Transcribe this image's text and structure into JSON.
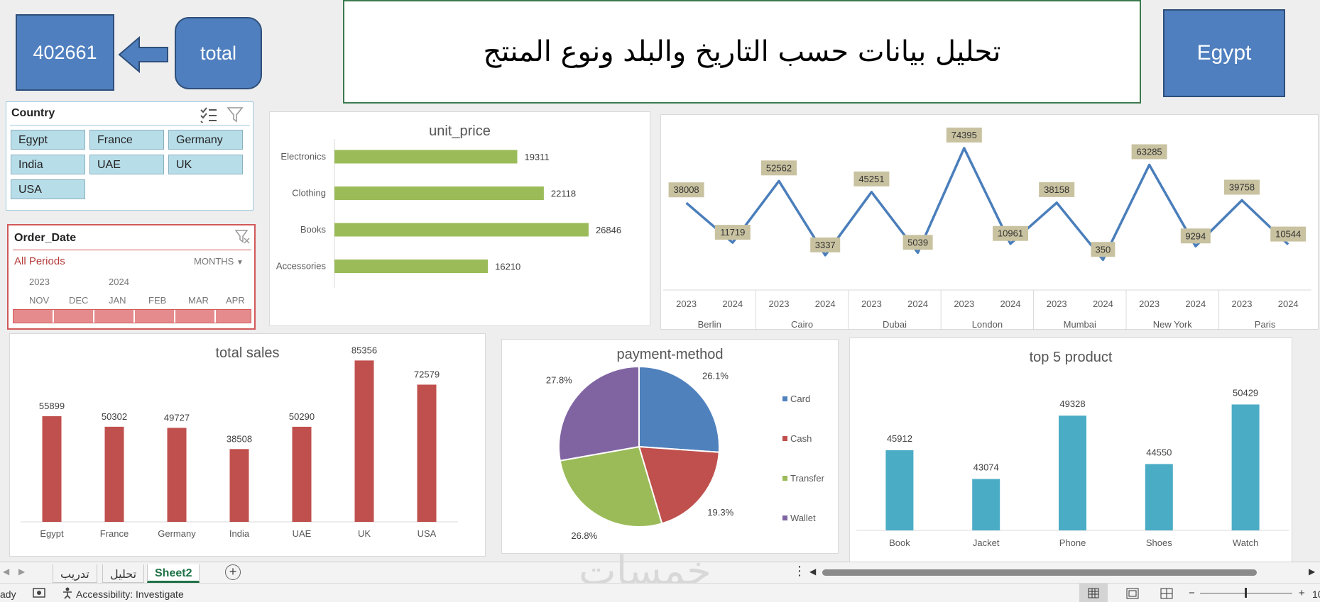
{
  "kpi": {
    "total_value": "402661",
    "total_label": "total",
    "country_label": "Egypt",
    "colors": {
      "fill": "#4f7fbf",
      "border": "#2f4f7a"
    }
  },
  "header": {
    "title": "تحليل بيانات حسب التاريخ والبلد ونوع المنتج"
  },
  "country_slicer": {
    "title": "Country",
    "items": [
      "Egypt",
      "France",
      "Germany",
      "India",
      "UAE",
      "UK",
      "USA"
    ],
    "icons": [
      "multi-select-icon",
      "clear-filter-icon"
    ]
  },
  "date_slicer": {
    "title": "Order_Date",
    "period_label": "All Periods",
    "level_label": "MONTHS",
    "years": [
      "2023",
      "2024"
    ],
    "months": [
      "NOV",
      "DEC",
      "JAN",
      "FEB",
      "MAR",
      "APR"
    ],
    "icons": [
      "clear-filter-icon",
      "dropdown-arrow-icon"
    ]
  },
  "chart_data": [
    {
      "type": "bar",
      "orientation": "horizontal",
      "title": "unit_price",
      "categories": [
        "Electronics",
        "Clothing",
        "Books",
        "Accessories"
      ],
      "values": [
        19311,
        22118,
        26846,
        16210
      ],
      "color": "#9bbb59",
      "xlim": [
        0,
        30000
      ]
    },
    {
      "type": "line",
      "title": "",
      "groups": [
        "Berlin",
        "Cairo",
        "Dubai",
        "London",
        "Mumbai",
        "New York",
        "Paris"
      ],
      "x": [
        "2023",
        "2024",
        "2023",
        "2024",
        "2023",
        "2024",
        "2023",
        "2024",
        "2023",
        "2024",
        "2023",
        "2024",
        "2023",
        "2024"
      ],
      "values": [
        38008,
        11719,
        52562,
        3337,
        45251,
        5039,
        74395,
        10961,
        38158,
        350,
        63285,
        9294,
        39758,
        10544
      ],
      "color": "#4a7ebb",
      "label_color": "#c9c2a0",
      "ylim": [
        0,
        80000
      ]
    },
    {
      "type": "bar",
      "title": "total sales",
      "categories": [
        "Egypt",
        "France",
        "Germany",
        "India",
        "UAE",
        "UK",
        "USA"
      ],
      "values": [
        55899,
        50302,
        49727,
        38508,
        50290,
        85356,
        72579
      ],
      "color": "#c0504d",
      "ylim": [
        0,
        90000
      ]
    },
    {
      "type": "pie",
      "title": "payment-method",
      "labels": [
        "Card",
        "Cash",
        "Transfer",
        "Wallet"
      ],
      "values": [
        26.1,
        19.3,
        26.8,
        27.8
      ],
      "value_labels": [
        "26.1%",
        "19.3%",
        "26.8%",
        "27.8%"
      ],
      "colors": [
        "#4f81bd",
        "#c0504d",
        "#9bbb59",
        "#8064a2"
      ],
      "legend": "right"
    },
    {
      "type": "bar",
      "title": "top 5 product",
      "categories": [
        "Book",
        "Jacket",
        "Phone",
        "Shoes",
        "Watch"
      ],
      "values": [
        45912,
        43074,
        49328,
        44550,
        50429
      ],
      "color": "#4bacc6",
      "ylim": [
        38000,
        52000
      ]
    }
  ],
  "sheet_tabs": {
    "tabs": [
      "تدريب",
      "تحليل",
      "Sheet2"
    ],
    "active": "Sheet2",
    "icons": [
      "add-sheet-icon",
      "options-dots-icon",
      "scroll-left-icon",
      "scroll-right-icon"
    ]
  },
  "status_bar": {
    "ready": "ady",
    "accessibility": "Accessibility: Investigate",
    "zoom": "10",
    "zoom_minus": "−",
    "zoom_plus": "+",
    "icons": [
      "macro-icon",
      "accessibility-icon",
      "normal-view-icon",
      "page-layout-icon",
      "page-break-icon"
    ]
  },
  "watermark": "خمسات"
}
